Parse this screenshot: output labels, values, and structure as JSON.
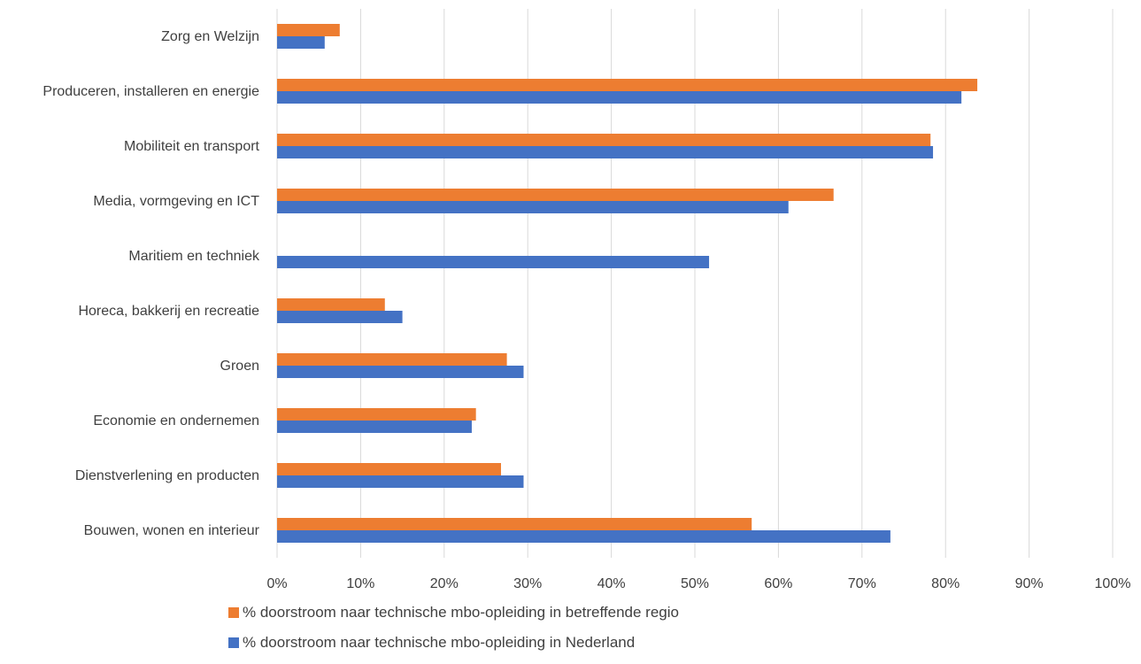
{
  "chart_data": {
    "type": "bar",
    "orientation": "horizontal",
    "categories": [
      "Zorg en Welzijn",
      "Produceren, installeren en energie",
      "Mobiliteit en transport",
      "Media, vormgeving en ICT",
      "Maritiem en techniek",
      "Horeca, bakkerij en recreatie",
      "Groen",
      "Economie en ondernemen",
      "Dienstverlening en producten",
      "Bouwen, wonen en interieur"
    ],
    "series": [
      {
        "name": "% doorstroom naar technische mbo-opleiding in betreffende regio",
        "color": "#ED7D31",
        "values": [
          7.5,
          83.8,
          78.2,
          66.6,
          null,
          12.9,
          27.5,
          23.8,
          26.8,
          56.8
        ]
      },
      {
        "name": "% doorstroom naar technische mbo-opleiding in Nederland",
        "color": "#4472C4",
        "values": [
          5.7,
          81.9,
          78.5,
          61.2,
          51.7,
          15.0,
          29.5,
          23.3,
          29.5,
          73.4
        ]
      }
    ],
    "xlim": [
      0,
      100
    ],
    "x_ticks": [
      "0%",
      "10%",
      "20%",
      "30%",
      "40%",
      "50%",
      "60%",
      "70%",
      "80%",
      "90%",
      "100%"
    ],
    "grid": true,
    "legend_position": "bottom"
  }
}
